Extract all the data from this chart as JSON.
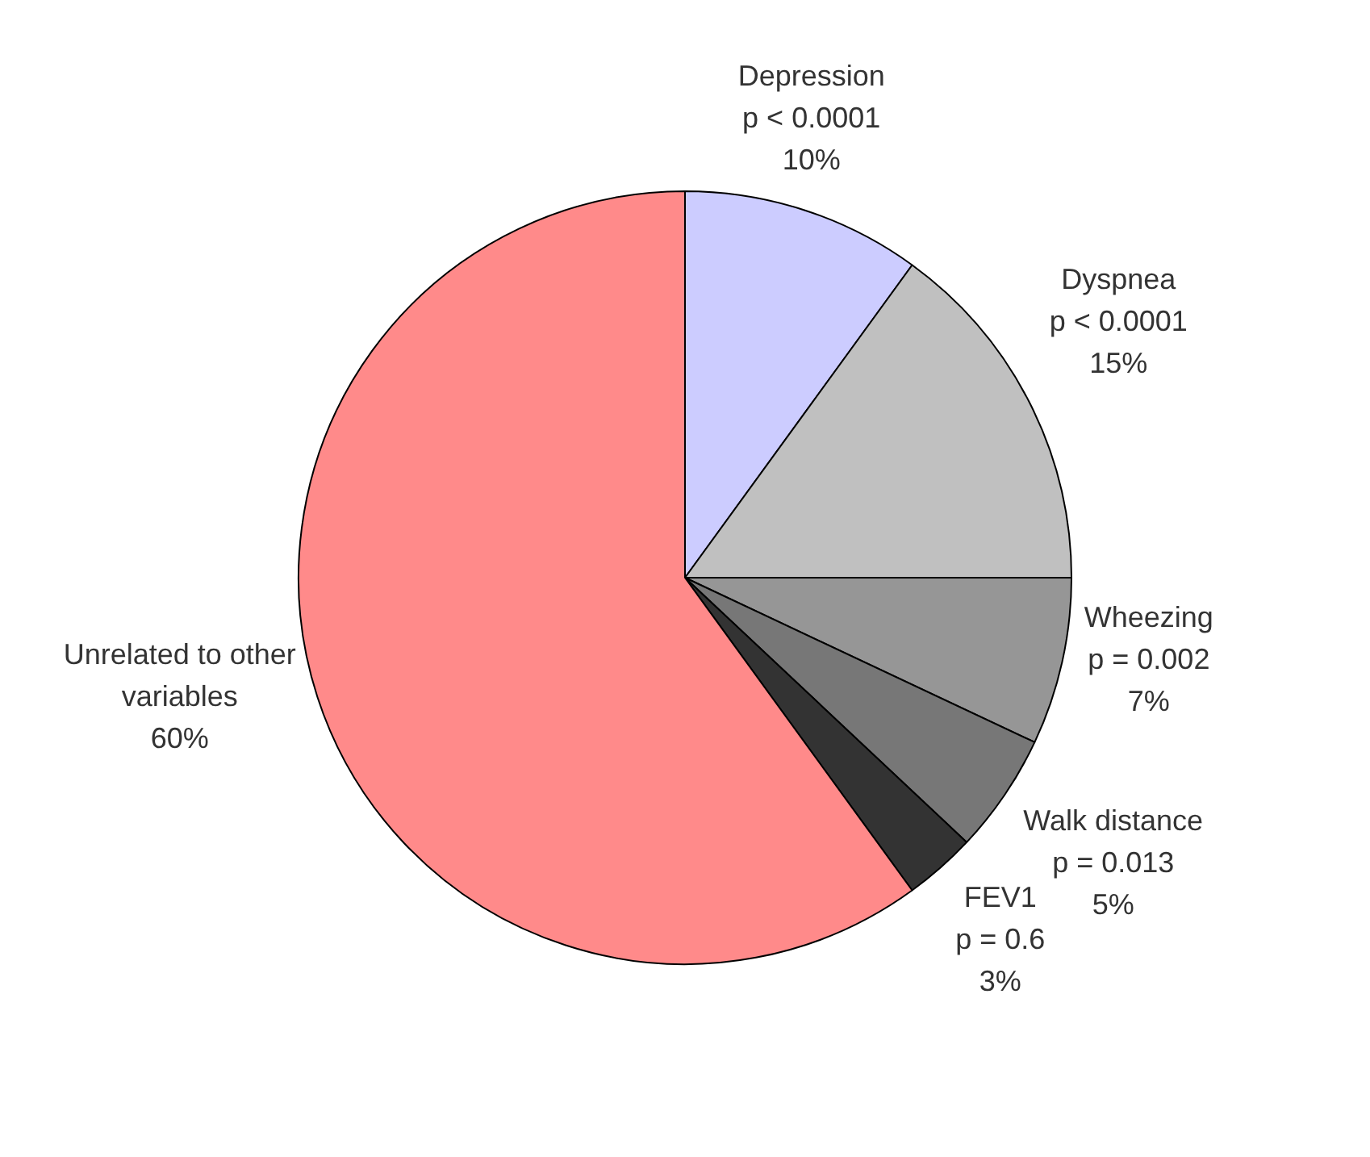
{
  "chart_data": {
    "type": "pie",
    "categories": [
      "Depression\np < 0.0001",
      "Dyspnea\np < 0.0001",
      "Wheezing\np = 0.002",
      "Walk distance\np = 0.013",
      "FEV1\np = 0.6",
      "Unrelated to other\nvariables"
    ],
    "values": [
      10,
      15,
      7,
      5,
      3,
      60
    ],
    "value_labels": [
      "10%",
      "15%",
      "7%",
      "5%",
      "3%",
      "60%"
    ],
    "colors": [
      "#ccccff",
      "#c0c0c0",
      "#969696",
      "#777777",
      "#333333",
      "#ff8a8a"
    ],
    "legend": false
  }
}
